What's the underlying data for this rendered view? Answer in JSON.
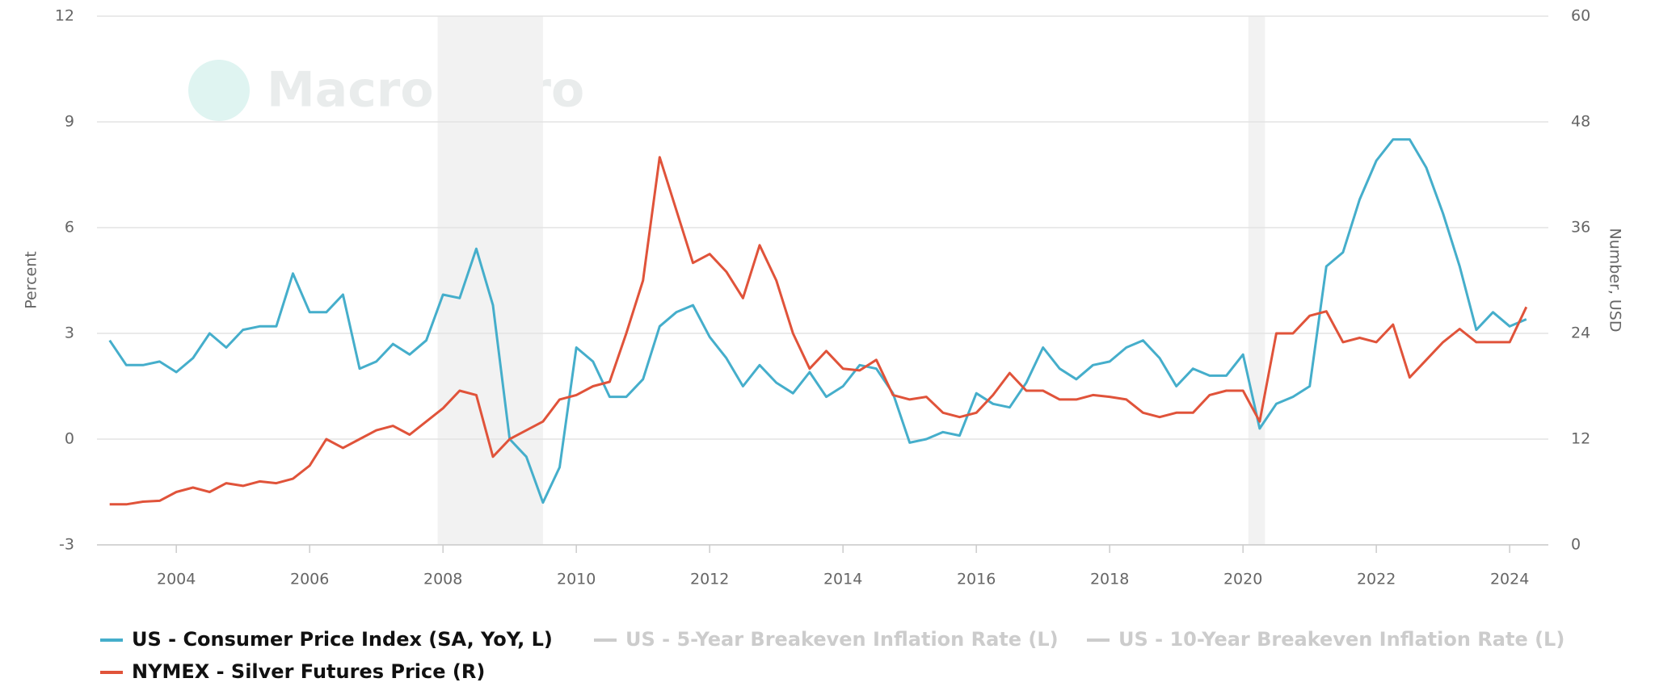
{
  "chart_data": {
    "type": "line",
    "watermark": "MacroMicro",
    "ylabel": "Percent",
    "y2label": "Number, USD",
    "xlim": [
      2002.81,
      2024.58
    ],
    "xticks": [
      2004,
      2006,
      2008,
      2010,
      2012,
      2014,
      2016,
      2018,
      2020,
      2022,
      2024
    ],
    "ylim": [
      -3,
      12
    ],
    "yticks": [
      -3,
      0,
      3,
      6,
      9,
      12
    ],
    "y2lim": [
      0,
      60
    ],
    "y2ticks": [
      0,
      12,
      24,
      36,
      48,
      60
    ],
    "grid": true,
    "legend": "bottom",
    "shaded_periods": [
      [
        2007.92,
        2009.5
      ],
      [
        2020.08,
        2020.33
      ]
    ],
    "x": [
      2003,
      2003.25,
      2003.5,
      2003.75,
      2004,
      2004.25,
      2004.5,
      2004.75,
      2005,
      2005.25,
      2005.5,
      2005.75,
      2006,
      2006.25,
      2006.5,
      2006.75,
      2007,
      2007.25,
      2007.5,
      2007.75,
      2008,
      2008.25,
      2008.5,
      2008.75,
      2009,
      2009.25,
      2009.5,
      2009.75,
      2010,
      2010.25,
      2010.5,
      2010.75,
      2011,
      2011.25,
      2011.5,
      2011.75,
      2012,
      2012.25,
      2012.5,
      2012.75,
      2013,
      2013.25,
      2013.5,
      2013.75,
      2014,
      2014.25,
      2014.5,
      2014.75,
      2015,
      2015.25,
      2015.5,
      2015.75,
      2016,
      2016.25,
      2016.5,
      2016.75,
      2017,
      2017.25,
      2017.5,
      2017.75,
      2018,
      2018.25,
      2018.5,
      2018.75,
      2019,
      2019.25,
      2019.5,
      2019.75,
      2020,
      2020.25,
      2020.5,
      2020.75,
      2021,
      2021.25,
      2021.5,
      2021.75,
      2022,
      2022.25,
      2022.5,
      2022.75,
      2023,
      2023.25,
      2023.5,
      2023.75,
      2024,
      2024.25
    ],
    "series": [
      {
        "name": "US - Consumer Price Index (SA, YoY, L)",
        "color": "#45aecb",
        "visible": true,
        "values": [
          2.8,
          2.1,
          2.1,
          2.2,
          1.9,
          2.3,
          3.0,
          2.6,
          3.1,
          3.2,
          3.2,
          4.7,
          3.6,
          3.6,
          4.1,
          2.0,
          2.2,
          2.7,
          2.4,
          2.8,
          4.1,
          4.0,
          5.4,
          3.8,
          0.0,
          -0.5,
          -1.8,
          -0.8,
          2.6,
          2.2,
          1.2,
          1.2,
          1.7,
          3.2,
          3.6,
          3.8,
          2.9,
          2.3,
          1.5,
          2.1,
          1.6,
          1.3,
          1.9,
          1.2,
          1.5,
          2.1,
          2.0,
          1.3,
          -0.1,
          0.0,
          0.2,
          0.1,
          1.3,
          1.0,
          0.9,
          1.6,
          2.6,
          2.0,
          1.7,
          2.1,
          2.2,
          2.6,
          2.8,
          2.3,
          1.5,
          2.0,
          1.8,
          1.8,
          2.4,
          0.3,
          1.0,
          1.2,
          1.5,
          4.9,
          5.3,
          6.8,
          7.9,
          8.5,
          8.5,
          7.7,
          6.4,
          4.9,
          3.1,
          3.6,
          3.2,
          3.4
        ]
      },
      {
        "name": "US - 5-Year Breakeven Inflation Rate (L)",
        "color": "#cccccc",
        "visible": false
      },
      {
        "name": "US - 10-Year Breakeven Inflation Rate (L)",
        "color": "#cccccc",
        "visible": false
      },
      {
        "name": "NYMEX - Silver Futures Price (R)",
        "color": "#e0533a",
        "visible": true,
        "axis": "y2",
        "values": [
          4.6,
          4.6,
          4.9,
          5.0,
          6.0,
          6.5,
          6.0,
          7.0,
          6.7,
          7.2,
          7.0,
          7.5,
          9.0,
          12.0,
          11.0,
          12.0,
          13.0,
          13.5,
          12.5,
          14.0,
          15.5,
          17.5,
          17.0,
          10.0,
          12.0,
          13.0,
          14.0,
          16.5,
          17.0,
          18.0,
          18.5,
          24.0,
          30.0,
          44.0,
          38.0,
          32.0,
          33.0,
          31.0,
          28.0,
          34.0,
          30.0,
          24.0,
          20.0,
          22.0,
          20.0,
          19.8,
          21.0,
          17.0,
          16.5,
          16.8,
          15.0,
          14.5,
          15.0,
          17.0,
          19.5,
          17.5,
          17.5,
          16.5,
          16.5,
          17.0,
          16.8,
          16.5,
          15.0,
          14.5,
          15.0,
          15.0,
          17.0,
          17.5,
          17.5,
          14.0,
          24.0,
          24.0,
          26.0,
          26.5,
          23.0,
          23.5,
          23.0,
          25.0,
          19.0,
          21.0,
          23.0,
          24.5,
          23.0,
          23.0,
          23.0,
          27.0
        ]
      }
    ]
  }
}
